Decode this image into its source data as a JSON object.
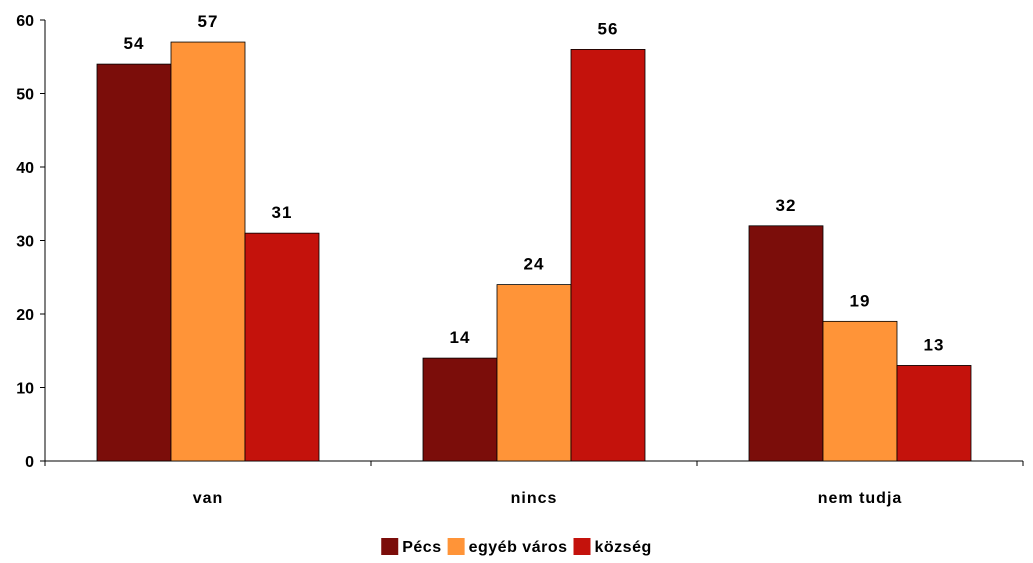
{
  "chart_data": {
    "type": "bar",
    "title": "",
    "xlabel": "",
    "ylabel": "",
    "categories": [
      "van",
      "nincs",
      "nem tudja"
    ],
    "series": [
      {
        "name": "Pécs",
        "color": "#7B0D0A",
        "values": [
          54,
          14,
          32
        ]
      },
      {
        "name": "egyéb város",
        "color": "#FF9438",
        "values": [
          57,
          24,
          19
        ]
      },
      {
        "name": "község",
        "color": "#C4120C",
        "values": [
          31,
          56,
          13
        ]
      }
    ],
    "ylim": [
      0,
      60
    ],
    "yticks": [
      0,
      10,
      20,
      30,
      40,
      50,
      60
    ],
    "grid": false,
    "legend_position": "bottom"
  }
}
